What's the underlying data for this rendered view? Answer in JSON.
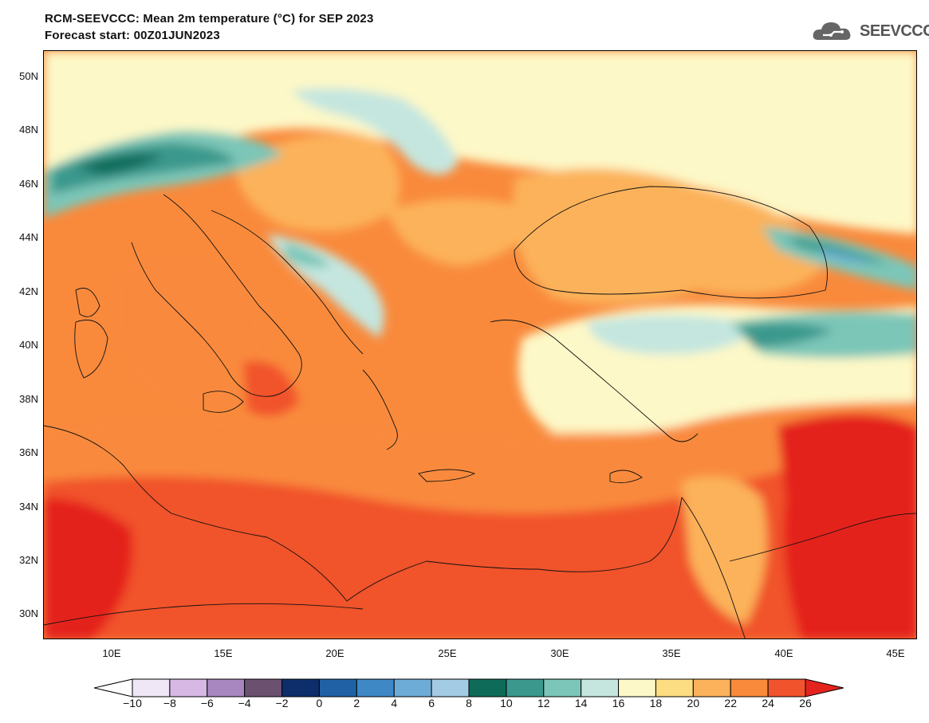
{
  "header": {
    "title": "RCM-SEEVCCC: Mean 2m temperature (°C) for SEP 2023",
    "subtitle": "Forecast start: 00Z01JUN2023",
    "logo_text": "SEEVCCC"
  },
  "axes": {
    "lat_labels": [
      "50N",
      "48N",
      "46N",
      "44N",
      "42N",
      "40N",
      "38N",
      "36N",
      "34N",
      "32N",
      "30N"
    ],
    "lon_labels": [
      "10E",
      "15E",
      "20E",
      "25E",
      "30E",
      "35E",
      "40E",
      "45E"
    ]
  },
  "colorbar": {
    "labels": [
      "-10",
      "-8",
      "-6",
      "-4",
      "-2",
      "0",
      "2",
      "4",
      "6",
      "8",
      "10",
      "12",
      "14",
      "16",
      "18",
      "20",
      "22",
      "24",
      "26"
    ],
    "under_color": "#ffffff",
    "over_color": "#e4231f",
    "colors": [
      "#efe6f6",
      "#d7b8e4",
      "#a886c0",
      "#6b5070",
      "#0d2d6b",
      "#1f61a4",
      "#3f88c6",
      "#6cacd7",
      "#a4cbe4",
      "#0e6b5a",
      "#3a988c",
      "#7bc6b8",
      "#c4e6df",
      "#fdf8c7",
      "#fddd82",
      "#fcb25a",
      "#f98a3c",
      "#f1532c"
    ]
  }
}
